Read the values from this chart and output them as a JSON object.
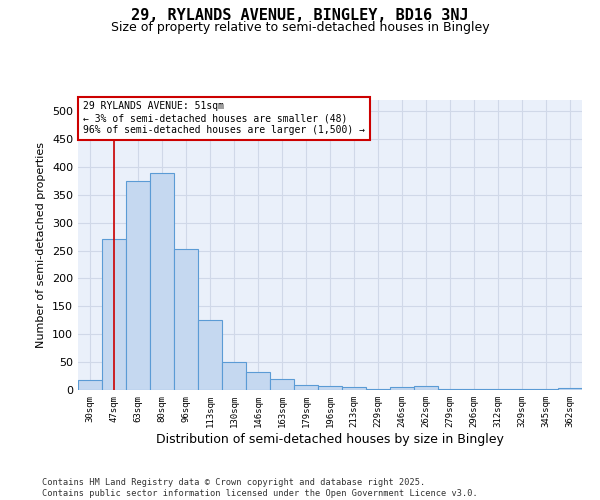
{
  "title1": "29, RYLANDS AVENUE, BINGLEY, BD16 3NJ",
  "title2": "Size of property relative to semi-detached houses in Bingley",
  "xlabel": "Distribution of semi-detached houses by size in Bingley",
  "ylabel": "Number of semi-detached properties",
  "annotation_title": "29 RYLANDS AVENUE: 51sqm",
  "annotation_line1": "← 3% of semi-detached houses are smaller (48)",
  "annotation_line2": "96% of semi-detached houses are larger (1,500) →",
  "footer1": "Contains HM Land Registry data © Crown copyright and database right 2025.",
  "footer2": "Contains public sector information licensed under the Open Government Licence v3.0.",
  "categories": [
    "30sqm",
    "47sqm",
    "63sqm",
    "80sqm",
    "96sqm",
    "113sqm",
    "130sqm",
    "146sqm",
    "163sqm",
    "179sqm",
    "196sqm",
    "213sqm",
    "229sqm",
    "246sqm",
    "262sqm",
    "279sqm",
    "296sqm",
    "312sqm",
    "329sqm",
    "345sqm",
    "362sqm"
  ],
  "values": [
    18,
    270,
    375,
    390,
    252,
    125,
    50,
    32,
    19,
    9,
    7,
    5,
    2,
    5,
    7,
    2,
    1,
    2,
    1,
    1,
    3
  ],
  "bar_color": "#c5d8f0",
  "bar_edge_color": "#5b9bd5",
  "vline_x": 1,
  "vline_color": "#cc0000",
  "ylim": [
    0,
    520
  ],
  "yticks": [
    0,
    50,
    100,
    150,
    200,
    250,
    300,
    350,
    400,
    450,
    500
  ],
  "grid_color": "#d0d8e8",
  "background_color": "#eaf0fa",
  "box_color": "#cc0000",
  "title1_fontsize": 11,
  "title2_fontsize": 9
}
